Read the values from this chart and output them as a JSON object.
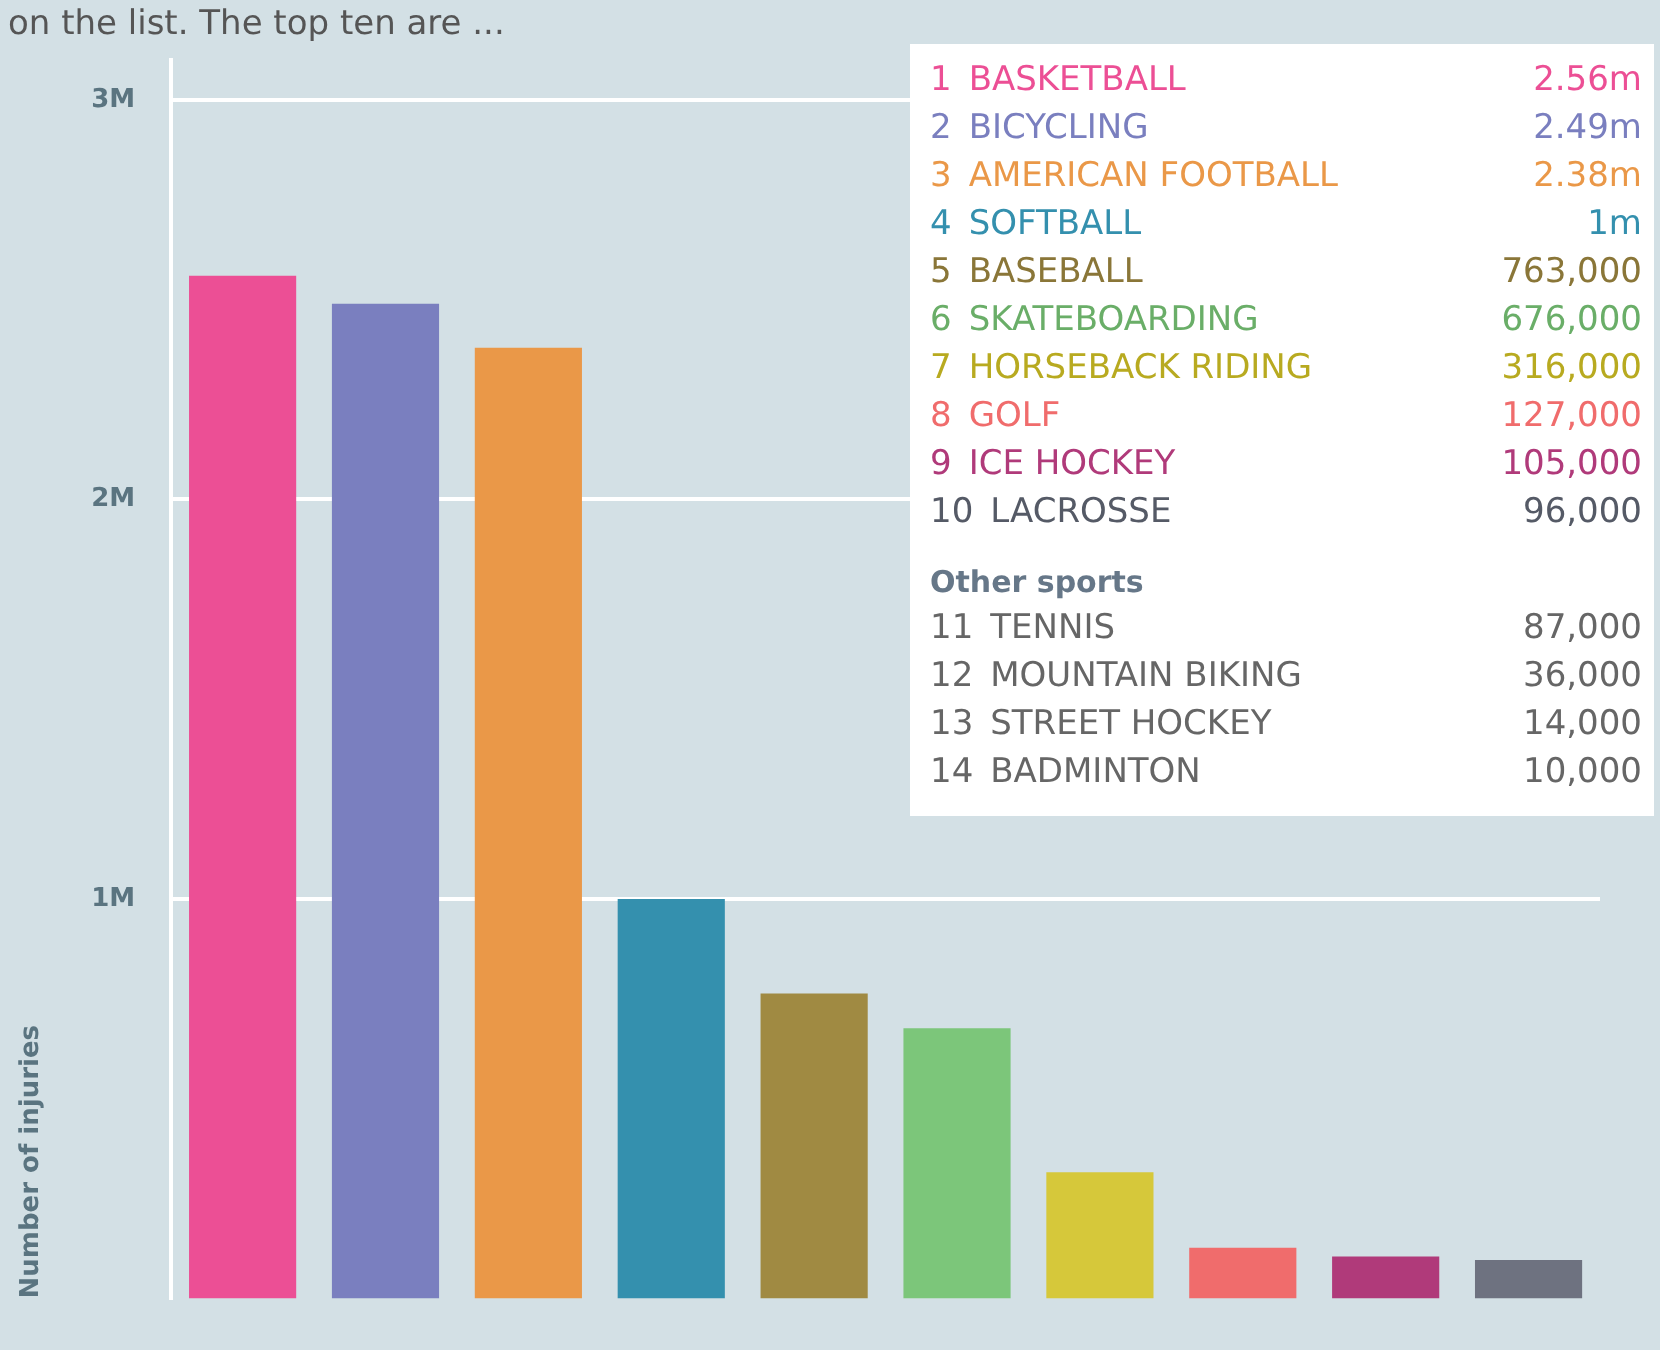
{
  "chart_data": [
    {
      "type": "bar",
      "subtitle": "on the list. The top ten are ...",
      "ylabel": "Number of injuries",
      "categories": [
        null,
        null,
        null,
        null,
        null,
        null,
        null,
        null,
        null,
        null
      ],
      "values": [
        2560000,
        2490000,
        2380000,
        1000000,
        763000,
        676000,
        316000,
        127000,
        105000,
        96000
      ],
      "colors": [
        "#ec4f95",
        "#7a7fbf",
        "#ea9848",
        "#3490ae",
        "#a08a42",
        "#7cc67a",
        "#d6c83a",
        "#f06c6c",
        "#b03a7a",
        "#6e7280"
      ],
      "ylim": [
        0,
        3100000
      ],
      "yticks": [
        {
          "value": 1000000,
          "label": "1M"
        },
        {
          "value": 2000000,
          "label": "2M"
        },
        {
          "value": 3000000,
          "label": "3M"
        }
      ],
      "grid": "y",
      "tick_labels": "y"
    },
    {
      "type": "other",
      "annotations": [
        "1\tBASKETBALL\t2.56m",
        "2\tBICYCLING\t2.49m",
        "3\tAMERICAN FOOTBALL\t2.38m",
        "4\tSOFTBALL\t1m",
        "5\tBASEBALL\t763,000",
        "6\tSKATEBOARDING\t676,000",
        "7\tHORSEBACK RIDING\t316,000",
        "8\tGOLF\t127,000",
        "9\tICE HOCKEY\t105,000",
        "10\tLACROSSE\t96,000",
        "Other sports",
        "11\tTENNIS\t87,000",
        "12\tMOUNTAIN BIKING\t36,000",
        "13\tSTREET HOCKEY\t14,000",
        "14\tBADMINTON\t10,000"
      ],
      "colors": [
        "#ec4f95",
        "#7a7fbf",
        "#ea9848",
        "#3490ae",
        "#8a7638",
        "#6aae68",
        "#b8aa20",
        "#f06c6c",
        "#b03a7a",
        "#555a66",
        "#667788",
        "#666666",
        "#666666",
        "#666666",
        "#666666"
      ]
    }
  ]
}
